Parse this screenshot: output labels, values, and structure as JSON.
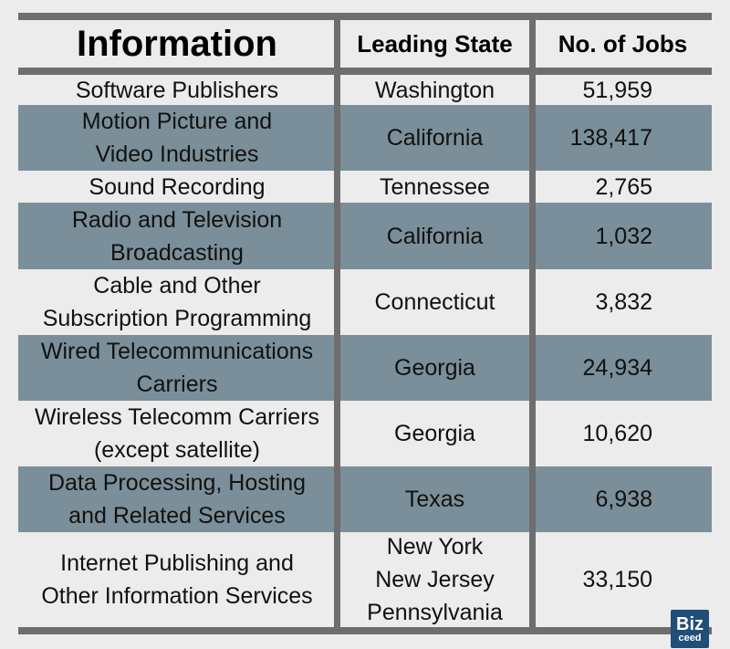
{
  "chart_data": {
    "type": "table",
    "columns": [
      "Information",
      "Leading State",
      "No. of Jobs"
    ],
    "rows": [
      {
        "industry": "Software Publishers",
        "state": "Washington",
        "jobs": "51,959",
        "shaded": false
      },
      {
        "industry": "Motion Picture and\nVideo Industries",
        "state": "California",
        "jobs": "138,417",
        "shaded": true
      },
      {
        "industry": "Sound Recording",
        "state": "Tennessee",
        "jobs": "2,765",
        "shaded": false
      },
      {
        "industry": "Radio and Television\nBroadcasting",
        "state": "California",
        "jobs": "1,032",
        "shaded": true
      },
      {
        "industry": "Cable and Other\nSubscription Programming",
        "state": "Connecticut",
        "jobs": "3,832",
        "shaded": false
      },
      {
        "industry": "Wired Telecommunications\nCarriers",
        "state": "Georgia",
        "jobs": "24,934",
        "shaded": true
      },
      {
        "industry": "Wireless Telecomm Carriers\n(except satellite)",
        "state": "Georgia",
        "jobs": "10,620",
        "shaded": false
      },
      {
        "industry": "Data Processing, Hosting\nand Related Services",
        "state": "Texas",
        "jobs": "6,938",
        "shaded": true
      },
      {
        "industry": "Internet Publishing and\nOther Information Services",
        "state": "New York\nNew Jersey\nPennsylvania",
        "jobs": "33,150",
        "shaded": false
      }
    ]
  },
  "colors": {
    "shade": "#7a8f99",
    "rule": "#6e6e6e",
    "background": "#ececec"
  },
  "logo": {
    "line1": "Biz",
    "line2": "ceed"
  }
}
